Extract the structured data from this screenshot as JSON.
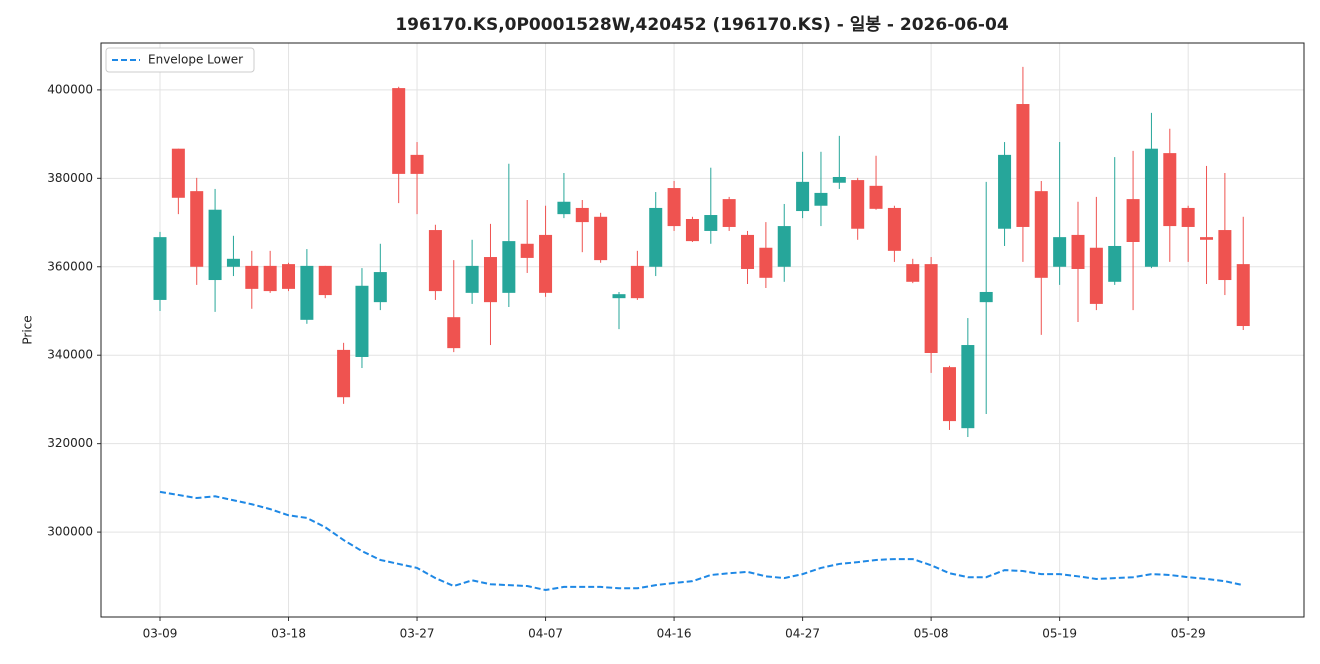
{
  "chart_data": {
    "type": "candlestick",
    "title": "196170.KS,0P0001528W,420452 (196170.KS) - 일봉 - 2026-06-04",
    "y_label": "Price",
    "categories": [
      "03-09",
      null,
      null,
      null,
      null,
      null,
      null,
      "03-18",
      null,
      null,
      null,
      null,
      null,
      null,
      "03-27",
      null,
      null,
      null,
      null,
      null,
      null,
      "04-07",
      null,
      null,
      null,
      null,
      null,
      null,
      "04-16",
      null,
      null,
      null,
      null,
      null,
      null,
      "04-27",
      null,
      null,
      null,
      null,
      null,
      null,
      "05-08",
      null,
      null,
      null,
      null,
      null,
      null,
      "05-19",
      null,
      null,
      null,
      null,
      null,
      null,
      "05-29",
      null,
      null,
      null
    ],
    "open": [
      352500,
      386700,
      377100,
      357000,
      360000,
      360200,
      360200,
      360600,
      348000,
      360200,
      341200,
      339600,
      352000,
      400400,
      385300,
      368300,
      348600,
      354100,
      362200,
      354100,
      365200,
      367200,
      371900,
      373300,
      371300,
      352900,
      360200,
      360000,
      377800,
      370800,
      368100,
      375300,
      367200,
      364300,
      360000,
      372600,
      373800,
      379000,
      379600,
      378300,
      373300,
      360600,
      360600,
      337300,
      323500,
      352000,
      368600,
      396800,
      377100,
      360000,
      367200,
      364300,
      356600,
      375300,
      360000,
      385700,
      373300,
      366700,
      368300,
      360600
    ],
    "high": [
      367900,
      386700,
      380100,
      377600,
      367000,
      363600,
      363600,
      360900,
      364000,
      360200,
      342800,
      359700,
      365200,
      400700,
      388200,
      369500,
      361500,
      366100,
      369700,
      383300,
      375100,
      373800,
      381200,
      375100,
      372200,
      354300,
      363600,
      376900,
      379400,
      371300,
      382400,
      375800,
      368100,
      370100,
      374200,
      386000,
      386000,
      389600,
      380100,
      385100,
      373800,
      361800,
      362200,
      337600,
      348400,
      379200,
      388200,
      405200,
      379400,
      388200,
      374700,
      375800,
      384800,
      386200,
      394800,
      391200,
      373800,
      382800,
      381200,
      371300
    ],
    "low": [
      350000,
      371900,
      355900,
      349800,
      357900,
      350500,
      354100,
      354500,
      347100,
      352900,
      329000,
      337100,
      350200,
      374400,
      371900,
      352500,
      340700,
      351600,
      342300,
      350900,
      358600,
      353200,
      371000,
      363300,
      360900,
      345900,
      352500,
      357900,
      368100,
      365600,
      365200,
      368100,
      356100,
      355200,
      356600,
      371000,
      369200,
      377600,
      366100,
      372900,
      361100,
      356300,
      336000,
      323100,
      321500,
      326700,
      364700,
      361100,
      344600,
      355900,
      347500,
      350200,
      355900,
      350200,
      359700,
      361100,
      361100,
      356100,
      353600,
      345700
    ],
    "close": [
      366700,
      375600,
      360000,
      372900,
      361800,
      355000,
      354500,
      355000,
      360200,
      353600,
      330500,
      355700,
      358800,
      381000,
      381000,
      354500,
      341600,
      360200,
      352000,
      365800,
      362000,
      354100,
      374700,
      370100,
      361500,
      353800,
      352900,
      373300,
      369200,
      365800,
      371700,
      369000,
      359500,
      357500,
      369200,
      379200,
      376700,
      380300,
      368600,
      373100,
      363600,
      356600,
      340500,
      325100,
      342300,
      354300,
      385300,
      369000,
      357500,
      366700,
      359500,
      351600,
      364700,
      365600,
      386700,
      369200,
      369000,
      366100,
      357000,
      346600
    ],
    "up_color": "#26a69a",
    "down_color": "#ef5350",
    "lines": [
      {
        "name": "Envelope Lower",
        "color": "#1e88e5",
        "dash": true,
        "values": [
          309100,
          308400,
          307700,
          308100,
          307200,
          306300,
          305200,
          303800,
          303200,
          301100,
          298200,
          295700,
          293700,
          292800,
          291900,
          289600,
          287800,
          289100,
          288200,
          288000,
          287800,
          286900,
          287600,
          287600,
          287600,
          287300,
          287300,
          288000,
          288500,
          288900,
          290300,
          290700,
          291000,
          290000,
          289600,
          290500,
          291900,
          292800,
          293200,
          293700,
          293900,
          293900,
          292500,
          290700,
          289800,
          289800,
          291400,
          291200,
          290500,
          290500,
          290000,
          289400,
          289600,
          289800,
          290500,
          290300,
          289800,
          289400,
          288900,
          288000
        ]
      }
    ],
    "ylim": [
      280800,
      410600
    ],
    "yticks": [
      300000,
      320000,
      340000,
      360000,
      380000,
      400000
    ],
    "grid": true,
    "legend": "upper left"
  }
}
